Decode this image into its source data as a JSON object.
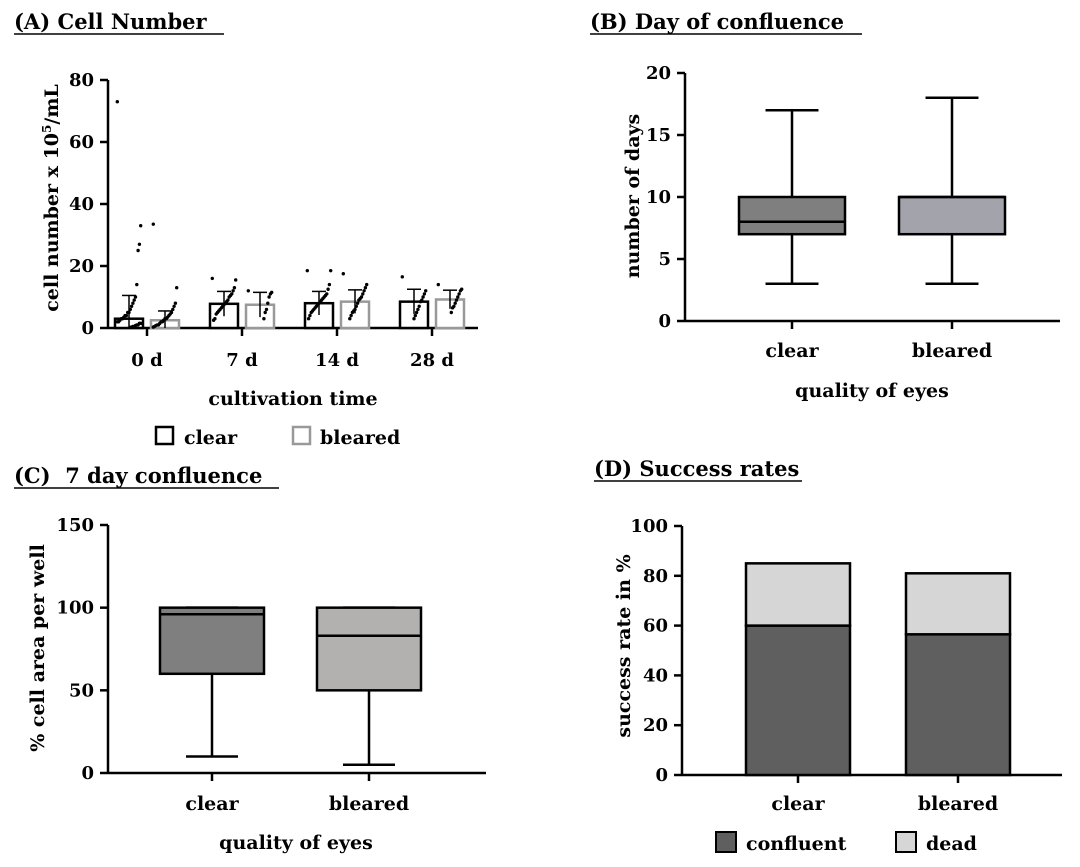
{
  "chart_data": [
    {
      "id": "A",
      "type": "bar",
      "title": "(A) Cell Number",
      "xlabel": "cultivation time",
      "ylabel_prefix": "cell number x 10",
      "ylabel_sup": "5",
      "ylabel_suffix": "/mL",
      "ylim": [
        0,
        80
      ],
      "yticks": [
        "0",
        "20",
        "40",
        "60",
        "80"
      ],
      "categories": [
        "0 d",
        "7 d",
        "14 d",
        "28 d"
      ],
      "series": [
        {
          "name": "clear",
          "color": "#000000",
          "values": [
            3.0,
            7.8,
            8.0,
            8.5
          ],
          "sd": [
            7.5,
            4.0,
            3.8,
            4.0
          ],
          "points": [
            [
              73,
              33,
              27,
              25,
              14,
              10,
              9,
              8,
              7,
              6,
              5,
              5,
              4,
              4,
              3.5,
              3,
              3,
              2.5,
              2,
              2,
              1.5,
              1.5,
              1,
              1,
              0.8,
              0.5,
              0.5,
              0.3,
              0.2
            ],
            [
              16,
              15.5,
              13,
              12,
              11,
              10.5,
              10,
              9,
              8.5,
              8,
              7.5,
              7,
              6.5,
              6,
              5.5,
              5,
              4.5,
              3,
              2.5
            ],
            [
              18.5,
              18.5,
              14,
              12.5,
              11,
              10.5,
              10,
              9.5,
              9,
              8.5,
              8,
              7.5,
              7,
              6.5,
              6,
              5.5,
              5,
              4,
              3
            ],
            [
              16.5,
              12,
              11,
              10,
              9,
              8.5,
              7,
              6,
              5,
              4,
              3
            ]
          ]
        },
        {
          "name": "bleared",
          "color": "#999999",
          "values": [
            2.5,
            7.5,
            8.5,
            9.2
          ],
          "sd": [
            3.0,
            4.0,
            3.8,
            3.0
          ],
          "points": [
            [
              33.5,
              13,
              8,
              7,
              6,
              5,
              4.5,
              4,
              3.5,
              3,
              3,
              2.5,
              2,
              2,
              1.5,
              1,
              1,
              0.8,
              0.5,
              0.3
            ],
            [
              12,
              11.5,
              11,
              10,
              8,
              6,
              5,
              3
            ],
            [
              17.5,
              14,
              13,
              12,
              11,
              10,
              9.5,
              9,
              8,
              7,
              6,
              5.5,
              5,
              4,
              3
            ],
            [
              14,
              12.5,
              12,
              11,
              10,
              9,
              8,
              7,
              6.5,
              5
            ]
          ]
        }
      ]
    },
    {
      "id": "B",
      "type": "box",
      "title": "(B) Day of confluence",
      "xlabel": "quality of eyes",
      "ylabel": "number of days",
      "ylim": [
        0,
        20
      ],
      "yticks": [
        "0",
        "5",
        "10",
        "15",
        "20"
      ],
      "categories": [
        "clear",
        "bleared"
      ],
      "boxes": [
        {
          "min": 3,
          "q1": 7,
          "median": 8,
          "q3": 10,
          "max": 17,
          "color": "#7f7f7f"
        },
        {
          "min": 3,
          "q1": 7,
          "median": 10,
          "q3": 10,
          "max": 18,
          "color": "#a3a3ac"
        }
      ]
    },
    {
      "id": "C",
      "type": "box",
      "title": "(C)  7 day confluence",
      "xlabel": "quality of eyes",
      "ylabel": "% cell area per well",
      "ylim": [
        0,
        150
      ],
      "yticks": [
        "0",
        "50",
        "100",
        "150"
      ],
      "categories": [
        "clear",
        "bleared"
      ],
      "boxes": [
        {
          "min": 10,
          "q1": 60,
          "median": 96,
          "q3": 100,
          "max": 100,
          "color": "#7f7f7f"
        },
        {
          "min": 5,
          "q1": 50,
          "median": 83,
          "q3": 100,
          "max": 100,
          "color": "#b3b0b0"
        }
      ]
    },
    {
      "id": "D",
      "type": "stacked-bar",
      "title": "(D) Success rates",
      "ylabel": "success rate in %",
      "ylim": [
        0,
        100
      ],
      "yticks": [
        "0",
        "20",
        "40",
        "60",
        "80",
        "100"
      ],
      "categories": [
        "clear",
        "bleared"
      ],
      "series": [
        {
          "name": "confluent",
          "color": "#5f5f5f",
          "values": [
            60,
            56.5
          ]
        },
        {
          "name": "dead",
          "color": "#d6d6d6",
          "values": [
            25,
            24.5
          ]
        }
      ]
    }
  ],
  "legends": {
    "A": [
      {
        "label": "clear",
        "color": "#000000"
      },
      {
        "label": "bleared",
        "color": "#999999"
      }
    ],
    "D": [
      {
        "label": "confluent",
        "color": "#5f5f5f"
      },
      {
        "label": "dead",
        "color": "#d6d6d6"
      }
    ]
  }
}
